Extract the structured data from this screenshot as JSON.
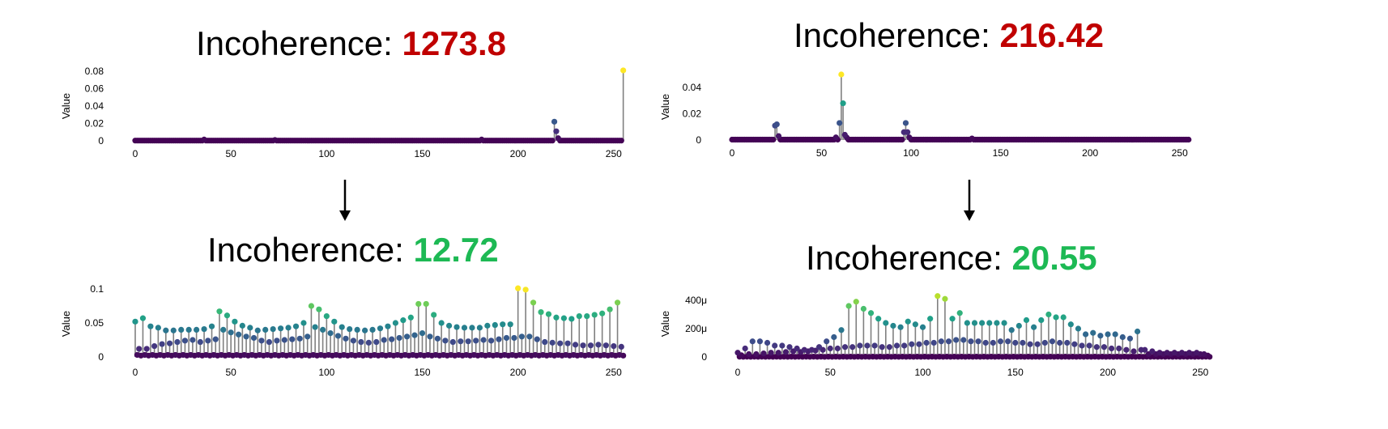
{
  "palette": {
    "bad_value_color": "#c00000",
    "good_value_color": "#1db954",
    "stem_color": "#808080"
  },
  "panels": [
    {
      "id": "top-left",
      "title_label": "Incoherence: ",
      "title_value": "1273.8",
      "value_state": "bad"
    },
    {
      "id": "top-right",
      "title_label": "Incoherence: ",
      "title_value": "216.42",
      "value_state": "bad"
    },
    {
      "id": "bottom-left",
      "title_label": "Incoherence: ",
      "title_value": "12.72",
      "value_state": "good"
    },
    {
      "id": "bottom-right",
      "title_label": "Incoherence: ",
      "title_value": "20.55",
      "value_state": "good"
    }
  ],
  "arrows": [
    {
      "name": "down-arrow-left",
      "icon": "arrow-down-icon"
    },
    {
      "name": "down-arrow-right",
      "icon": "arrow-down-icon"
    }
  ],
  "chart_data": [
    {
      "type": "scatter",
      "style": "stem",
      "title": "",
      "xlabel": "",
      "ylabel": "Value",
      "xlim": [
        0,
        256
      ],
      "ylim": [
        0,
        0.08
      ],
      "x_ticks": [
        0,
        50,
        100,
        150,
        200,
        250
      ],
      "y_ticks": [
        0,
        0.02,
        0.04,
        0.06,
        0.08
      ],
      "y_tick_labels": [
        "0",
        "0.02",
        "0.04",
        "0.06",
        "0.08"
      ],
      "colormap": "viridis",
      "base_value": 0.0003,
      "peaks": [
        [
          36,
          0.0015
        ],
        [
          73,
          0.001
        ],
        [
          181,
          0.0015
        ],
        [
          219,
          0.022
        ],
        [
          220,
          0.011
        ],
        [
          221,
          0.003
        ],
        [
          255,
          0.081
        ]
      ],
      "grid": false
    },
    {
      "type": "scatter",
      "style": "stem",
      "title": "",
      "xlabel": "",
      "ylabel": "Value",
      "xlim": [
        0,
        256
      ],
      "ylim": [
        0,
        0.05
      ],
      "x_ticks": [
        0,
        50,
        100,
        150,
        200,
        250
      ],
      "y_ticks": [
        0,
        0.02,
        0.04
      ],
      "y_tick_labels": [
        "0",
        "0.02",
        "0.04"
      ],
      "colormap": "viridis",
      "base_value": 0.0003,
      "peaks": [
        [
          24,
          0.011
        ],
        [
          25,
          0.012
        ],
        [
          26,
          0.003
        ],
        [
          58,
          0.002
        ],
        [
          60,
          0.013
        ],
        [
          61,
          0.05
        ],
        [
          62,
          0.028
        ],
        [
          63,
          0.004
        ],
        [
          64,
          0.002
        ],
        [
          96,
          0.006
        ],
        [
          97,
          0.013
        ],
        [
          98,
          0.006
        ],
        [
          99,
          0.002
        ],
        [
          134,
          0.0012
        ]
      ],
      "grid": false
    },
    {
      "type": "scatter",
      "style": "stem",
      "title": "",
      "xlabel": "",
      "ylabel": "Value",
      "xlim": [
        0,
        256
      ],
      "ylim": [
        0,
        0.1
      ],
      "x_ticks": [
        0,
        50,
        100,
        150,
        200,
        250
      ],
      "y_ticks": [
        0,
        0.05,
        0.1
      ],
      "y_tick_labels": [
        "0",
        "0.05",
        "0.1"
      ],
      "colormap": "viridis",
      "period": 4,
      "high_values": [
        0.052,
        0.057,
        0.045,
        0.043,
        0.039,
        0.039,
        0.04,
        0.04,
        0.04,
        0.041,
        0.045,
        0.067,
        0.061,
        0.052,
        0.046,
        0.043,
        0.039,
        0.04,
        0.041,
        0.042,
        0.043,
        0.045,
        0.05,
        0.075,
        0.07,
        0.06,
        0.052,
        0.044,
        0.041,
        0.04,
        0.039,
        0.04,
        0.042,
        0.045,
        0.05,
        0.054,
        0.058,
        0.078,
        0.078,
        0.062,
        0.05,
        0.046,
        0.044,
        0.043,
        0.043,
        0.043,
        0.046,
        0.047,
        0.048,
        0.048,
        0.101,
        0.099,
        0.08,
        0.066,
        0.063,
        0.058,
        0.057,
        0.056,
        0.06,
        0.06,
        0.062,
        0.064,
        0.07,
        0.08
      ],
      "mid_values": [
        0.012,
        0.012,
        0.016,
        0.019,
        0.02,
        0.022,
        0.024,
        0.025,
        0.022,
        0.024,
        0.026,
        0.04,
        0.036,
        0.033,
        0.03,
        0.028,
        0.024,
        0.022,
        0.024,
        0.025,
        0.026,
        0.027,
        0.03,
        0.044,
        0.04,
        0.035,
        0.031,
        0.027,
        0.024,
        0.022,
        0.021,
        0.022,
        0.025,
        0.026,
        0.028,
        0.03,
        0.032,
        0.035,
        0.03,
        0.027,
        0.024,
        0.022,
        0.023,
        0.023,
        0.024,
        0.025,
        0.024,
        0.026,
        0.028,
        0.028,
        0.03,
        0.03,
        0.026,
        0.022,
        0.021,
        0.02,
        0.02,
        0.018,
        0.017,
        0.017,
        0.018,
        0.017,
        0.016,
        0.015
      ],
      "low_values": [
        0.006,
        0.003,
        0.002
      ],
      "grid": false
    },
    {
      "type": "scatter",
      "style": "stem",
      "title": "",
      "xlabel": "",
      "ylabel": "Value",
      "xlim": [
        0,
        256
      ],
      "ylim": [
        0,
        0.00048
      ],
      "x_ticks": [
        0,
        50,
        100,
        150,
        200,
        250
      ],
      "y_ticks": [
        0,
        0.0002,
        0.0004
      ],
      "y_tick_labels": [
        "0",
        "200μ",
        "400μ"
      ],
      "colormap": "viridis",
      "period": 4,
      "high_values": [
        3e-05,
        6e-05,
        0.00011,
        0.00011,
        0.0001,
        8e-05,
        8e-05,
        7e-05,
        6e-05,
        5e-05,
        5e-05,
        7e-05,
        0.00011,
        0.00014,
        0.00019,
        0.00036,
        0.00039,
        0.00034,
        0.00031,
        0.00027,
        0.00024,
        0.00022,
        0.00021,
        0.00025,
        0.00023,
        0.00021,
        0.00027,
        0.00043,
        0.00041,
        0.00027,
        0.00031,
        0.00024,
        0.00024,
        0.00024,
        0.00024,
        0.00024,
        0.00024,
        0.00019,
        0.00022,
        0.00026,
        0.00021,
        0.00026,
        0.0003,
        0.00028,
        0.00028,
        0.00023,
        0.0002,
        0.00016,
        0.00017,
        0.00015,
        0.00016,
        0.00016,
        0.00014,
        0.00013,
        0.00018,
        5e-05,
        4e-05,
        3e-05,
        3e-05,
        3e-05,
        3e-05,
        3e-05,
        3e-05,
        2e-05
      ],
      "mid_values": [
        1.2e-05,
        2e-05,
        2e-05,
        2.5e-05,
        3e-05,
        3e-05,
        3.5e-05,
        4e-05,
        3.5e-05,
        4e-05,
        4.5e-05,
        5e-05,
        6e-05,
        6e-05,
        7e-05,
        7e-05,
        8e-05,
        8e-05,
        8e-05,
        7e-05,
        7e-05,
        8e-05,
        8e-05,
        9e-05,
        9e-05,
        0.0001,
        0.0001,
        0.00011,
        0.00011,
        0.00012,
        0.00012,
        0.00011,
        0.00011,
        0.0001,
        0.0001,
        0.00011,
        0.00011,
        0.0001,
        0.0001,
        9e-05,
        9e-05,
        0.0001,
        0.00011,
        0.0001,
        0.0001,
        9e-05,
        8e-05,
        8e-05,
        7e-05,
        7e-05,
        6e-05,
        6e-05,
        5e-05,
        4e-05,
        5e-05,
        2e-05,
        2e-05,
        2e-05,
        2e-05,
        2e-05,
        2e-05,
        2e-05,
        2e-05,
        1e-05
      ],
      "low_values": [
        5e-06,
        2e-06,
        1e-06
      ],
      "grid": false
    }
  ]
}
